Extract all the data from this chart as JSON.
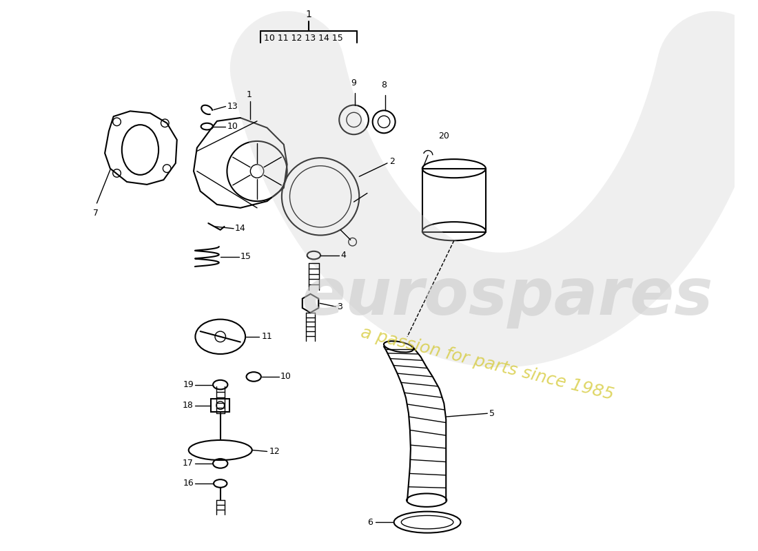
{
  "bg_color": "#ffffff",
  "line_color": "#000000",
  "watermark_text1": "eurospares",
  "watermark_text2": "a passion for parts since 1985",
  "figsize": [
    11.0,
    8.0
  ],
  "dpi": 100,
  "bracket_label": "1",
  "bracket_items": "10 11 12 13 14 15"
}
